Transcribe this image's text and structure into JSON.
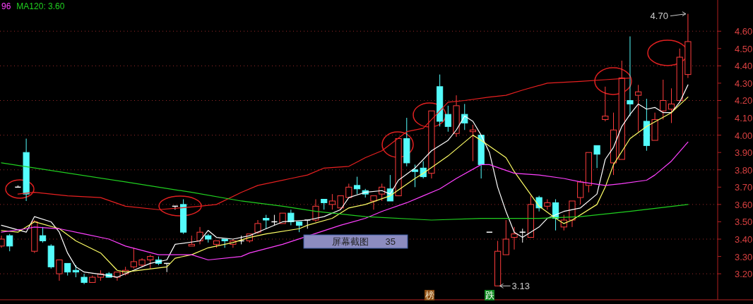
{
  "chart_data": {
    "type": "candlestick",
    "categories": [
      null,
      null,
      null,
      null,
      null,
      null,
      null,
      null,
      null,
      null,
      null,
      null,
      null,
      null,
      null,
      null,
      null,
      null,
      null,
      null,
      null,
      null,
      null,
      null,
      null,
      null,
      null,
      null,
      null,
      null,
      null,
      null,
      null,
      null,
      null,
      null,
      null,
      null,
      null,
      null,
      null,
      null,
      null,
      null,
      null,
      null,
      null,
      null,
      null,
      null,
      null,
      null,
      null,
      null,
      null,
      null,
      null,
      null,
      null,
      null,
      null,
      null,
      null,
      null,
      null,
      null,
      null,
      null,
      null,
      null,
      null,
      null,
      null,
      null,
      null,
      null,
      null,
      null,
      null,
      null,
      null,
      null,
      null,
      null
    ],
    "ohlc": [
      [
        3.36,
        3.42,
        3.35,
        3.4
      ],
      [
        3.42,
        3.43,
        3.33,
        3.36
      ],
      [
        3.7,
        3.71,
        3.7,
        3.7
      ],
      [
        3.9,
        3.98,
        3.62,
        3.66
      ],
      [
        3.33,
        3.51,
        3.32,
        3.5
      ],
      [
        3.42,
        3.47,
        3.38,
        3.39
      ],
      [
        3.36,
        3.37,
        3.23,
        3.24
      ],
      [
        3.2,
        3.28,
        3.16,
        3.28
      ],
      [
        3.26,
        3.26,
        3.19,
        3.21
      ],
      [
        3.22,
        3.25,
        3.18,
        3.21
      ],
      [
        3.18,
        3.2,
        3.14,
        3.15
      ],
      [
        3.15,
        3.19,
        3.15,
        3.18
      ],
      [
        3.18,
        3.22,
        3.16,
        3.2
      ],
      [
        3.2,
        3.21,
        3.18,
        3.18
      ],
      [
        3.18,
        3.21,
        3.16,
        3.21
      ],
      [
        3.2,
        3.24,
        3.19,
        3.22
      ],
      [
        3.24,
        3.35,
        3.23,
        3.27
      ],
      [
        3.25,
        3.29,
        3.24,
        3.28
      ],
      [
        3.28,
        3.31,
        3.23,
        3.3
      ],
      [
        3.28,
        3.3,
        3.25,
        3.26
      ],
      [
        3.26,
        3.26,
        3.21,
        3.26
      ],
      [
        3.59,
        3.59,
        3.57,
        3.59
      ],
      [
        3.6,
        3.63,
        3.43,
        3.44
      ],
      [
        3.36,
        3.42,
        3.36,
        3.37
      ],
      [
        3.39,
        3.47,
        3.37,
        3.44
      ],
      [
        3.42,
        3.43,
        3.38,
        3.4
      ],
      [
        3.37,
        3.39,
        3.35,
        3.39
      ],
      [
        3.4,
        3.4,
        3.35,
        3.39
      ],
      [
        3.37,
        3.4,
        3.35,
        3.39
      ],
      [
        3.39,
        3.42,
        3.37,
        3.39
      ],
      [
        3.39,
        3.43,
        3.38,
        3.43
      ],
      [
        3.44,
        3.51,
        3.43,
        3.49
      ],
      [
        3.52,
        3.54,
        3.46,
        3.51
      ],
      [
        3.5,
        3.54,
        3.48,
        3.5
      ],
      [
        3.49,
        3.55,
        3.49,
        3.55
      ],
      [
        3.55,
        3.57,
        3.48,
        3.5
      ],
      [
        3.5,
        3.5,
        3.44,
        3.48
      ],
      [
        3.51,
        3.51,
        3.46,
        3.51
      ],
      [
        3.51,
        3.63,
        3.5,
        3.59
      ],
      [
        3.63,
        3.63,
        3.57,
        3.61
      ],
      [
        3.6,
        3.66,
        3.57,
        3.62
      ],
      [
        3.58,
        3.65,
        3.57,
        3.65
      ],
      [
        3.64,
        3.72,
        3.64,
        3.7
      ],
      [
        3.71,
        3.76,
        3.66,
        3.69
      ],
      [
        3.68,
        3.69,
        3.64,
        3.66
      ],
      [
        3.62,
        3.65,
        3.57,
        3.65
      ],
      [
        3.66,
        3.72,
        3.62,
        3.7
      ],
      [
        3.69,
        3.77,
        3.62,
        3.62
      ],
      [
        3.65,
        3.98,
        3.65,
        3.98
      ],
      [
        3.98,
        4.1,
        3.82,
        3.84
      ],
      [
        3.8,
        3.83,
        3.7,
        3.79
      ],
      [
        3.81,
        3.85,
        3.75,
        3.76
      ],
      [
        3.78,
        4.14,
        3.75,
        4.14
      ],
      [
        4.28,
        4.35,
        4.05,
        4.08
      ],
      [
        4.12,
        4.17,
        4.02,
        4.05
      ],
      [
        4.01,
        4.23,
        3.99,
        4.17
      ],
      [
        4.12,
        4.18,
        4.03,
        4.07
      ],
      [
        4.02,
        4.06,
        3.85,
        4.03
      ],
      [
        4.0,
        4.0,
        3.75,
        3.83
      ],
      [
        3.44,
        3.44,
        3.44,
        3.44
      ],
      [
        3.13,
        3.39,
        3.13,
        3.33
      ],
      [
        3.31,
        3.51,
        3.31,
        3.4
      ],
      [
        3.41,
        3.47,
        3.34,
        3.43
      ],
      [
        3.44,
        3.46,
        3.38,
        3.44
      ],
      [
        3.41,
        3.65,
        3.41,
        3.6
      ],
      [
        3.64,
        3.65,
        3.56,
        3.58
      ],
      [
        3.59,
        3.63,
        3.57,
        3.61
      ],
      [
        3.61,
        3.63,
        3.45,
        3.52
      ],
      [
        3.47,
        3.54,
        3.45,
        3.51
      ],
      [
        3.51,
        3.62,
        3.47,
        3.62
      ],
      [
        3.64,
        3.74,
        3.6,
        3.73
      ],
      [
        3.71,
        3.9,
        3.67,
        3.9
      ],
      [
        3.94,
        3.94,
        3.81,
        3.89
      ],
      [
        4.09,
        4.28,
        4.08,
        4.11
      ],
      [
        3.84,
        4.13,
        3.77,
        4.03
      ],
      [
        3.86,
        4.43,
        3.86,
        4.33
      ],
      [
        4.2,
        4.57,
        4.11,
        4.18
      ],
      [
        4.23,
        4.29,
        4.02,
        4.25
      ],
      [
        4.08,
        4.21,
        3.91,
        3.94
      ],
      [
        3.97,
        4.13,
        3.97,
        4.09
      ],
      [
        4.14,
        4.32,
        4.09,
        4.2
      ],
      [
        4.15,
        4.27,
        4.07,
        4.18
      ],
      [
        4.2,
        4.5,
        4.2,
        4.45
      ],
      [
        4.35,
        4.7,
        4.33,
        4.54
      ]
    ],
    "colors": [
      "#ff3c3c",
      "#54fcfc",
      "#ffffff",
      "#54fcfc",
      "#ff3c3c",
      "#54fcfc",
      "#54fcfc",
      "#ff3c3c",
      "#54fcfc",
      "#54fcfc",
      "#54fcfc",
      "#ff3c3c",
      "#ff3c3c",
      "#54fcfc",
      "#ff3c3c",
      "#ff3c3c",
      "#ff3c3c",
      "#ff3c3c",
      "#ff3c3c",
      "#54fcfc",
      "#ffffff",
      "#ffffff",
      "#54fcfc",
      "#ff3c3c",
      "#ff3c3c",
      "#54fcfc",
      "#ff3c3c",
      "#54fcfc",
      "#ff3c3c",
      "#ffffff",
      "#ff3c3c",
      "#ff3c3c",
      "#54fcfc",
      "#ffffff",
      "#ff3c3c",
      "#54fcfc",
      "#54fcfc",
      "#ffffff",
      "#ff3c3c",
      "#54fcfc",
      "#ff3c3c",
      "#ff3c3c",
      "#ff3c3c",
      "#54fcfc",
      "#54fcfc",
      "#ff3c3c",
      "#ff3c3c",
      "#54fcfc",
      "#ff3c3c",
      "#54fcfc",
      "#54fcfc",
      "#54fcfc",
      "#ff3c3c",
      "#54fcfc",
      "#54fcfc",
      "#ff3c3c",
      "#54fcfc",
      "#ff3c3c",
      "#54fcfc",
      "#ffffff",
      "#ff3c3c",
      "#ff3c3c",
      "#ff3c3c",
      "#ffffff",
      "#ff3c3c",
      "#54fcfc",
      "#ff3c3c",
      "#54fcfc",
      "#ff3c3c",
      "#ff3c3c",
      "#ff3c3c",
      "#ff3c3c",
      "#54fcfc",
      "#ff3c3c",
      "#ff3c3c",
      "#ff3c3c",
      "#54fcfc",
      "#ff3c3c",
      "#54fcfc",
      "#ff3c3c",
      "#ff3c3c",
      "#ff3c3c",
      "#ff3c3c",
      "#ff3c3c"
    ],
    "series": [
      {
        "type": "line",
        "color": "#ffffff",
        "values": [
          3.48,
          null,
          null,
          3.44,
          3.53,
          null,
          3.5,
          3.44,
          3.32,
          3.24,
          3.21,
          null,
          null,
          3.19,
          3.18,
          null,
          null,
          null,
          3.26,
          null,
          3.28,
          3.37,
          null,
          null,
          3.39,
          3.45,
          3.41,
          null,
          3.4,
          null,
          3.42,
          null,
          3.46,
          null,
          3.5,
          null,
          null,
          3.51,
          null,
          3.53,
          null,
          3.57,
          3.64,
          null,
          3.67,
          null,
          3.68,
          3.66,
          3.74,
          null,
          3.81,
          null,
          3.91,
          null,
          3.97,
          4.03,
          4.11,
          4.08,
          4.0,
          3.9,
          3.7,
          3.56,
          3.44,
          3.41,
          null,
          3.47,
          3.52,
          null,
          3.56,
          null,
          3.58,
          null,
          3.66,
          3.86,
          3.93,
          4.05,
          4.12,
          4.18,
          4.15,
          4.16,
          4.13,
          4.13,
          4.19,
          4.29
        ]
      },
      {
        "type": "line",
        "color": "#ffff66",
        "values": [
          3.45,
          null,
          3.44,
          null,
          3.5,
          null,
          null,
          3.46,
          null,
          3.39,
          null,
          null,
          3.32,
          null,
          3.22,
          3.21,
          null,
          null,
          null,
          null,
          3.24,
          3.29,
          null,
          3.31,
          null,
          3.35,
          null,
          null,
          3.38,
          null,
          3.41,
          null,
          3.43,
          null,
          null,
          null,
          3.46,
          3.48,
          null,
          null,
          3.52,
          null,
          3.58,
          null,
          3.6,
          null,
          null,
          3.65,
          null,
          null,
          3.75,
          3.78,
          null,
          null,
          3.88,
          null,
          null,
          4.0,
          3.97,
          null,
          null,
          3.87,
          3.79,
          null,
          null,
          3.59,
          null,
          3.52,
          3.49,
          3.51,
          null,
          null,
          3.6,
          3.7,
          3.83,
          null,
          3.98,
          null,
          4.05,
          null,
          null,
          4.13,
          null,
          4.22
        ]
      },
      {
        "type": "line",
        "name": "96",
        "color": "#ff40ff",
        "values": [
          3.44,
          null,
          null,
          3.46,
          3.47,
          null,
          null,
          3.46,
          null,
          null,
          3.43,
          null,
          null,
          3.4,
          null,
          3.36,
          null,
          null,
          null,
          3.31,
          null,
          null,
          null,
          3.31,
          null,
          3.28,
          null,
          null,
          null,
          3.3,
          3.32,
          null,
          null,
          null,
          3.37,
          null,
          null,
          null,
          null,
          null,
          null,
          3.48,
          null,
          null,
          3.52,
          null,
          3.56,
          null,
          null,
          3.61,
          null,
          3.65,
          null,
          3.69,
          null,
          3.75,
          null,
          null,
          3.83,
          3.83,
          null,
          null,
          3.78,
          null,
          null,
          3.77,
          null,
          null,
          3.75,
          null,
          3.73,
          null,
          null,
          3.71,
          null,
          3.72,
          null,
          null,
          3.74,
          3.77,
          null,
          3.85,
          null,
          3.96
        ]
      },
      {
        "type": "line",
        "color": "#e82020",
        "values": [
          null,
          null,
          3.66,
          null,
          3.67,
          null,
          null,
          null,
          3.65,
          null,
          null,
          null,
          3.64,
          null,
          null,
          3.59,
          null,
          null,
          null,
          3.57,
          null,
          null,
          null,
          null,
          3.59,
          null,
          3.6,
          null,
          null,
          3.67,
          null,
          3.71,
          null,
          null,
          null,
          3.75,
          null,
          3.77,
          null,
          3.81,
          null,
          null,
          3.82,
          null,
          3.87,
          null,
          3.91,
          null,
          null,
          4.02,
          null,
          4.04,
          null,
          null,
          4.19,
          null,
          4.2,
          null,
          null,
          4.22,
          null,
          4.23,
          null,
          4.26,
          null,
          null,
          4.3,
          null,
          null,
          null,
          4.31,
          null,
          null,
          4.32,
          null,
          null,
          4.33,
          null,
          null,
          null,
          null,
          null,
          null,
          null
        ]
      },
      {
        "type": "line",
        "name": "MA120: 3.60",
        "color": "#20d020",
        "values": [
          3.84,
          null,
          null,
          null,
          null,
          null,
          null,
          null,
          null,
          null,
          null,
          null,
          null,
          null,
          null,
          3.73,
          null,
          null,
          null,
          null,
          null,
          null,
          null,
          3.67,
          null,
          null,
          null,
          null,
          null,
          3.62,
          null,
          null,
          null,
          null,
          3.59,
          null,
          null,
          null,
          3.56,
          null,
          null,
          null,
          null,
          null,
          3.53,
          null,
          null,
          null,
          null,
          null,
          null,
          null,
          3.51,
          null,
          null,
          null,
          null,
          null,
          3.52,
          null,
          null,
          null,
          null,
          null,
          null,
          3.52,
          null,
          null,
          null,
          null,
          3.53,
          null,
          null,
          null,
          null,
          null,
          3.56,
          null,
          null,
          null,
          null,
          null,
          null,
          3.6
        ]
      }
    ],
    "ylim": [
      3.05,
      4.78
    ],
    "yticks": [
      {
        "value": 3.2,
        "label": "3.20"
      },
      {
        "value": 3.3,
        "label": "3.30"
      },
      {
        "value": 3.4,
        "label": "3.40"
      },
      {
        "value": 3.5,
        "label": "3.50"
      },
      {
        "value": 3.6,
        "label": "3.60"
      },
      {
        "value": 3.7,
        "label": "3.70"
      },
      {
        "value": 3.8,
        "label": "3.80"
      },
      {
        "value": 3.9,
        "label": "3.90"
      },
      {
        "value": 4.0,
        "label": "4.00"
      },
      {
        "value": 4.1,
        "label": "4.10"
      },
      {
        "value": 4.2,
        "label": "4.20"
      },
      {
        "value": 4.3,
        "label": "4.30"
      },
      {
        "value": 4.4,
        "label": "4.40"
      },
      {
        "value": 4.5,
        "label": "4.50"
      },
      {
        "value": 4.6,
        "label": "4.60"
      }
    ],
    "ref_lines": [
      {
        "axis": "y",
        "value": 3.2,
        "color": "#9a2a2a",
        "line_style": "dotted"
      },
      {
        "axis": "y",
        "value": 3.4,
        "color": "#9a2a2a",
        "line_style": "dotted"
      },
      {
        "axis": "y",
        "value": 3.6,
        "color": "#9a2a2a",
        "line_style": "dotted"
      },
      {
        "axis": "y",
        "value": 3.8,
        "color": "#9a2a2a",
        "line_style": "dotted"
      },
      {
        "axis": "y",
        "value": 4.0,
        "color": "#9a2a2a",
        "line_style": "dotted"
      },
      {
        "axis": "y",
        "value": 4.2,
        "color": "#9a2a2a",
        "line_style": "dotted"
      },
      {
        "axis": "y",
        "value": 4.4,
        "color": "#9a2a2a",
        "line_style": "dotted"
      },
      {
        "axis": "y",
        "value": 4.6,
        "color": "#9a2a2a",
        "line_style": "dotted"
      }
    ],
    "annotations": [
      "屏幕截图",
      "35",
      "榜",
      "跌",
      "4.70",
      "3.13"
    ],
    "legend": "top left",
    "tick_labels": "y"
  }
}
